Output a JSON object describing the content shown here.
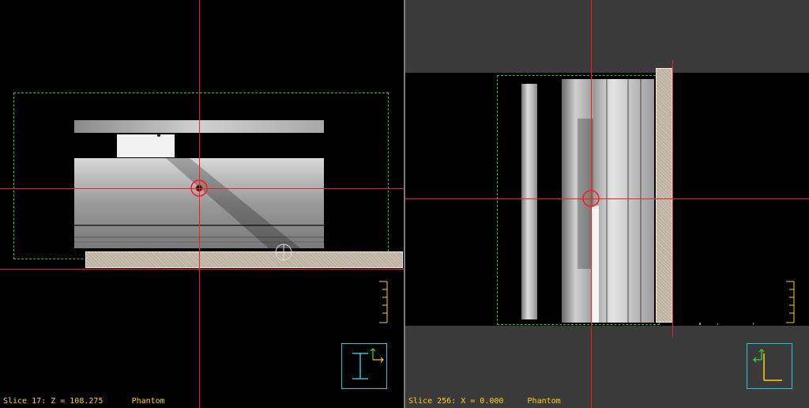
{
  "left_view": {
    "status": "Slice 17: Z = 108.275",
    "series": "Phantom",
    "orientation_icon": "axial-orientation-icon"
  },
  "right_view": {
    "status": "Slice 256: X = 0.000",
    "series": "Phantom",
    "orientation_icon": "sagittal-orientation-icon"
  },
  "colors": {
    "crosshair": "#ff1a1a",
    "roi": "#22cc22",
    "label": "#ffd21a",
    "orientation_box": "#1ec8d8"
  }
}
